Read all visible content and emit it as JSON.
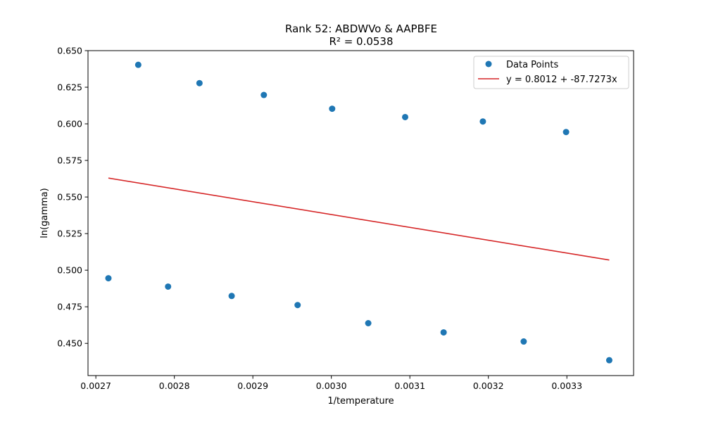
{
  "chart_data": {
    "type": "scatter",
    "title": "Rank 52: ABDWVo & AAPBFE",
    "subtitle": "R² = 0.0538",
    "xlabel": "1/temperature",
    "ylabel": "ln(gamma)",
    "xlim": [
      0.00269,
      0.003385
    ],
    "ylim": [
      0.428,
      0.65
    ],
    "xticks": [
      "0.0027",
      "0.0028",
      "0.0029",
      "0.0030",
      "0.0031",
      "0.0032",
      "0.0033"
    ],
    "xtick_values": [
      0.0027,
      0.0028,
      0.0029,
      0.003,
      0.0031,
      0.0032,
      0.0033
    ],
    "yticks": [
      "0.450",
      "0.475",
      "0.500",
      "0.525",
      "0.550",
      "0.575",
      "0.600",
      "0.625",
      "0.650"
    ],
    "ytick_values": [
      0.45,
      0.475,
      0.5,
      0.525,
      0.55,
      0.575,
      0.6,
      0.625,
      0.65
    ],
    "grid": false,
    "legend_position": "top-right",
    "series": [
      {
        "name": "Data Points",
        "kind": "scatter",
        "color": "#1f77b4",
        "points": [
          [
            0.002716,
            0.4945
          ],
          [
            0.002754,
            0.6403
          ],
          [
            0.002792,
            0.4888
          ],
          [
            0.002832,
            0.6278
          ],
          [
            0.002873,
            0.4824
          ],
          [
            0.002914,
            0.6197
          ],
          [
            0.002957,
            0.4762
          ],
          [
            0.003001,
            0.6103
          ],
          [
            0.003047,
            0.4638
          ],
          [
            0.003094,
            0.6046
          ],
          [
            0.003143,
            0.4575
          ],
          [
            0.003193,
            0.6016
          ],
          [
            0.003245,
            0.4513
          ],
          [
            0.003299,
            0.5944
          ],
          [
            0.003354,
            0.4385
          ]
        ]
      },
      {
        "name": "y = 0.8012 + -87.7273x",
        "kind": "line",
        "color": "#d62728",
        "intercept": 0.8012,
        "slope": -87.7273,
        "x_range": [
          0.002716,
          0.003354
        ]
      }
    ]
  }
}
